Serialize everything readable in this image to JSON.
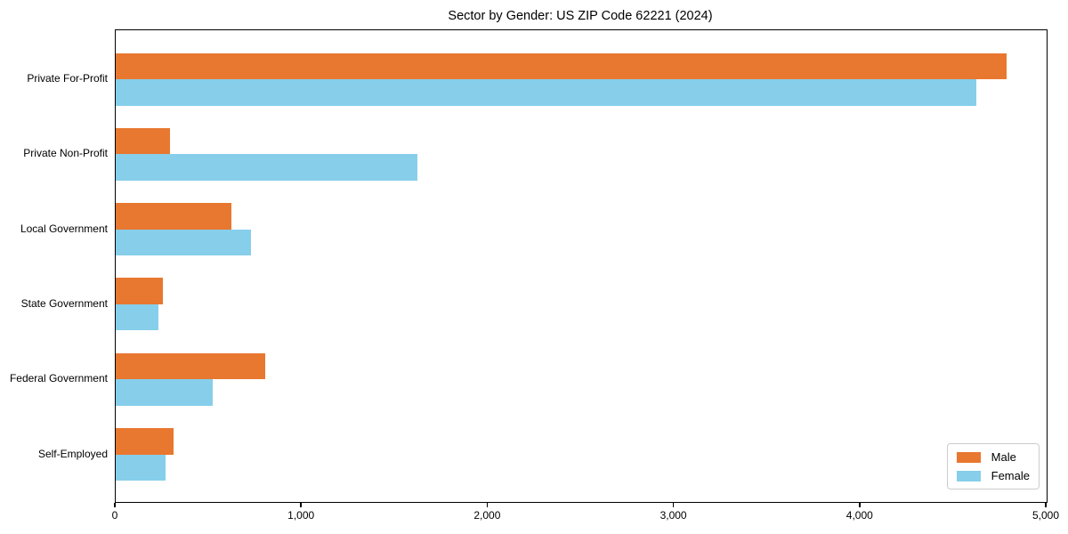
{
  "chart_data": {
    "type": "bar",
    "orientation": "horizontal",
    "title": "Sector by Gender: US ZIP Code 62221 (2024)",
    "categories": [
      "Private For-Profit",
      "Private Non-Profit",
      "Local Government",
      "State Government",
      "Federal Government",
      "Self-Employed"
    ],
    "series": [
      {
        "name": "Male",
        "color": "#E8772F",
        "values": [
          4785,
          290,
          620,
          255,
          805,
          310
        ]
      },
      {
        "name": "Female",
        "color": "#87CEEB",
        "values": [
          4620,
          1620,
          725,
          230,
          520,
          270
        ]
      }
    ],
    "xlabel": "",
    "ylabel": "",
    "xlim": [
      0,
      5000
    ],
    "xticks": [
      0,
      1000,
      2000,
      3000,
      4000,
      5000
    ],
    "xtick_labels": [
      "0",
      "1,000",
      "2,000",
      "3,000",
      "4,000",
      "5,000"
    ],
    "grid": false,
    "legend_position": "lower right",
    "background_color": "#ffffff",
    "spine_color": "#000000"
  }
}
